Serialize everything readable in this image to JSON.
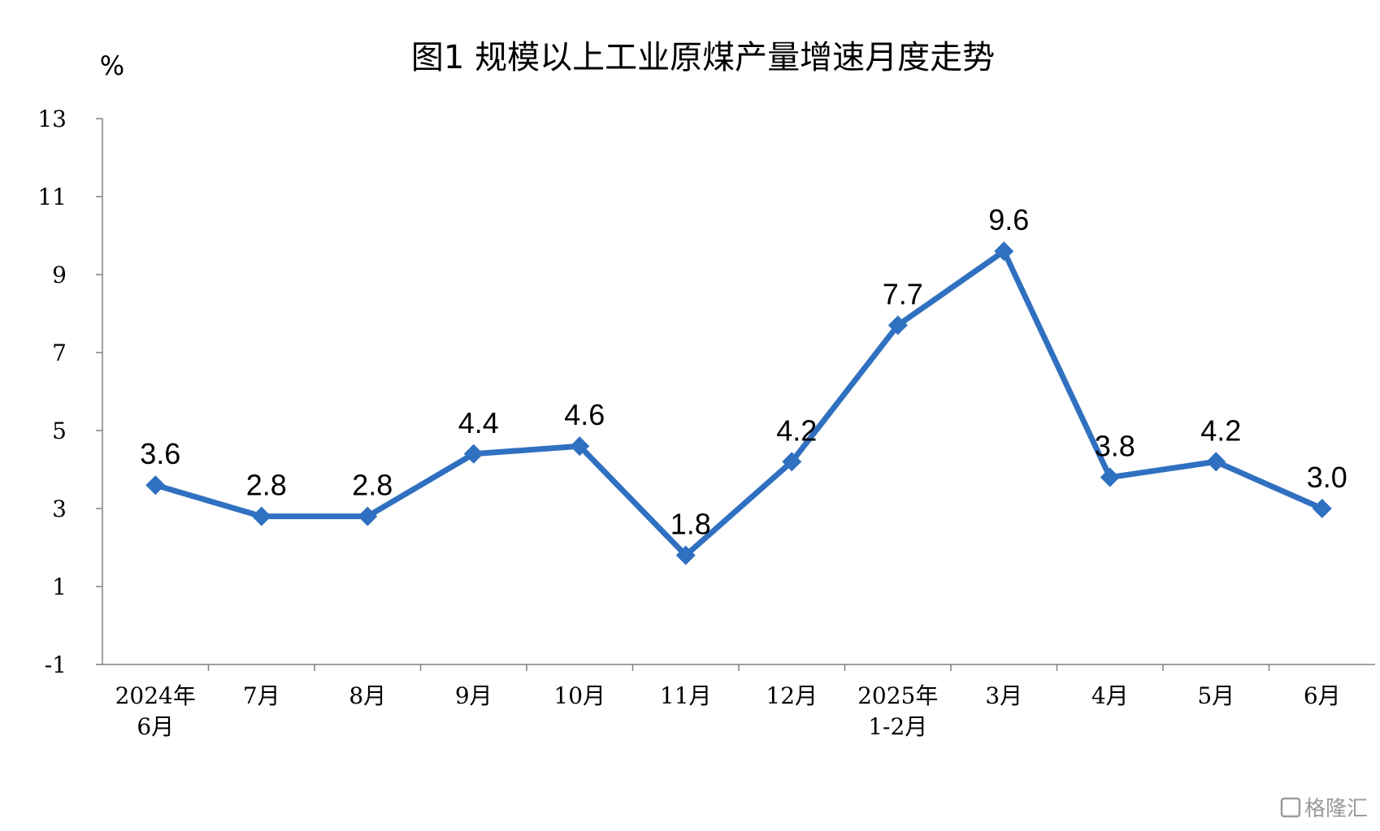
{
  "chart_data": {
    "type": "line",
    "title": "图1  规模以上工业原煤产量增速月度走势",
    "ylabel": "%",
    "categories": [
      [
        "2024年",
        "6月"
      ],
      [
        "7月"
      ],
      [
        "8月"
      ],
      [
        "9月"
      ],
      [
        "10月"
      ],
      [
        "11月"
      ],
      [
        "12月"
      ],
      [
        "2025年",
        "1-2月"
      ],
      [
        "3月"
      ],
      [
        "4月"
      ],
      [
        "5月"
      ],
      [
        "6月"
      ]
    ],
    "series": [
      {
        "values": [
          3.6,
          2.8,
          2.8,
          4.4,
          4.6,
          1.8,
          4.2,
          7.7,
          9.6,
          3.8,
          4.2,
          3.0
        ],
        "labels": [
          "3.6",
          "2.8",
          "2.8",
          "4.4",
          "4.6",
          "1.8",
          "4.2",
          "7.7",
          "9.6",
          "3.8",
          "4.2",
          "3.0"
        ],
        "color": "#3070C0",
        "marker": "diamond"
      }
    ],
    "ylim": [
      -1,
      13
    ],
    "yticks": [
      -1,
      1,
      3,
      5,
      7,
      9,
      11,
      13
    ],
    "grid": false,
    "legend": "none"
  },
  "watermark": "格隆汇"
}
